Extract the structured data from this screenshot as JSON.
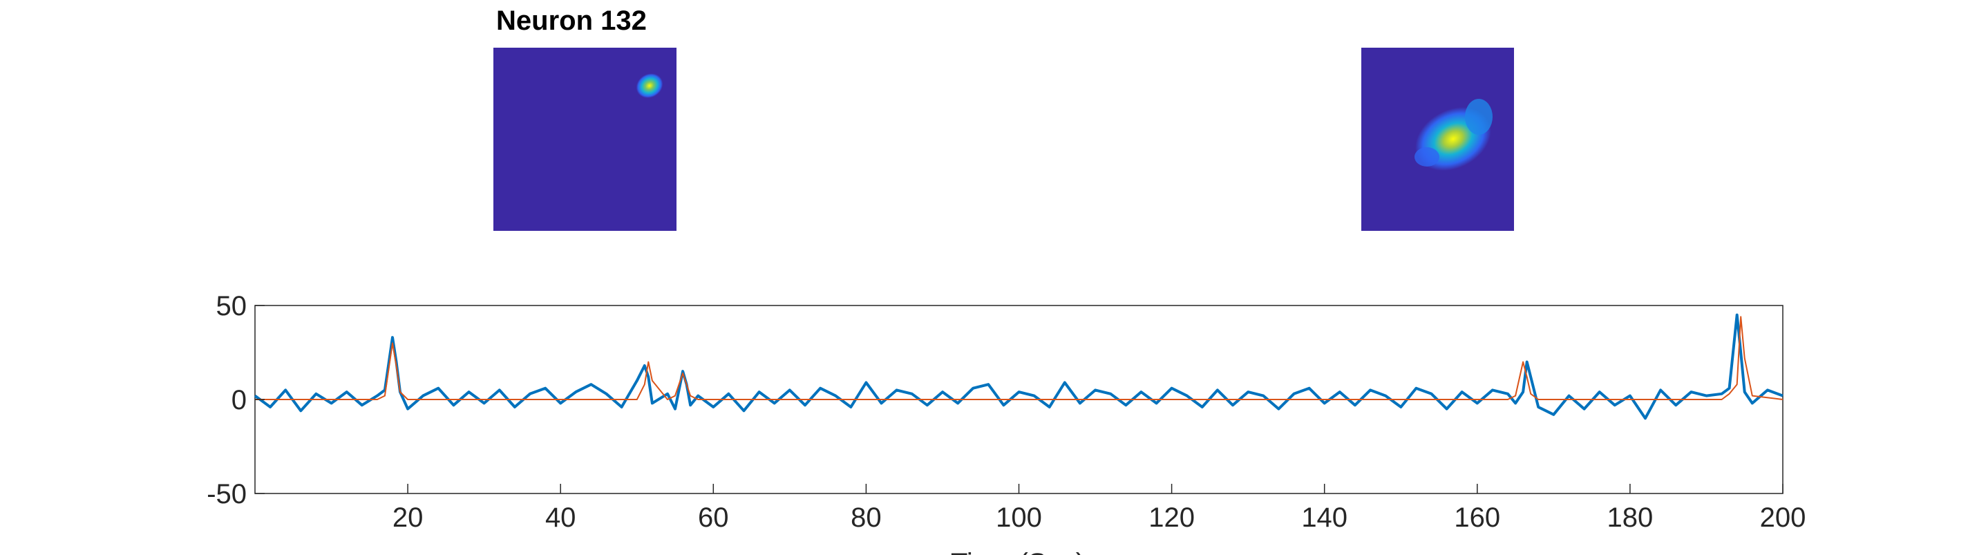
{
  "figure": {
    "left_panel_title": "Neuron 132",
    "right_panel_title": "",
    "colormap": [
      "#3e26a8",
      "#2f65f2",
      "#16b1d6",
      "#7cc75f",
      "#f9fb0e"
    ],
    "background_color": "#3c29a3"
  },
  "chart_data": {
    "type": "line",
    "title": "",
    "xlabel": "Time (Sec)",
    "ylabel": "",
    "xlim": [
      0,
      200
    ],
    "ylim": [
      -50,
      50
    ],
    "xticks": [
      20,
      40,
      60,
      80,
      100,
      120,
      140,
      160,
      180,
      200
    ],
    "yticks": [
      -50,
      0,
      50
    ],
    "grid": false,
    "legend": "none",
    "series": [
      {
        "color": "#0072bd",
        "x": [
          0,
          2,
          4,
          6,
          8,
          10,
          12,
          14,
          16,
          17,
          18,
          18.5,
          19,
          20,
          22,
          24,
          26,
          28,
          30,
          32,
          34,
          36,
          38,
          40,
          42,
          44,
          46,
          48,
          50,
          51,
          51.5,
          52,
          54,
          55,
          56,
          56.5,
          57,
          58,
          60,
          62,
          64,
          66,
          68,
          70,
          72,
          74,
          76,
          78,
          80,
          82,
          84,
          86,
          88,
          90,
          92,
          94,
          96,
          98,
          100,
          102,
          104,
          106,
          108,
          110,
          112,
          114,
          116,
          118,
          120,
          122,
          124,
          126,
          128,
          130,
          132,
          134,
          136,
          138,
          140,
          142,
          144,
          146,
          148,
          150,
          152,
          154,
          156,
          158,
          160,
          162,
          164,
          165,
          166,
          166.5,
          167,
          168,
          170,
          172,
          174,
          176,
          178,
          180,
          182,
          184,
          186,
          188,
          190,
          192,
          193,
          194,
          194.5,
          195,
          196,
          198,
          200
        ],
        "y": [
          2,
          -4,
          5,
          -6,
          3,
          -2,
          4,
          -3,
          2,
          5,
          33,
          20,
          4,
          -5,
          2,
          6,
          -3,
          4,
          -2,
          5,
          -4,
          3,
          6,
          -2,
          4,
          8,
          3,
          -4,
          10,
          18,
          12,
          -2,
          3,
          -5,
          15,
          8,
          -3,
          2,
          -4,
          3,
          -6,
          4,
          -2,
          5,
          -3,
          6,
          2,
          -4,
          9,
          -2,
          5,
          3,
          -3,
          4,
          -2,
          6,
          8,
          -3,
          4,
          2,
          -4,
          9,
          -2,
          5,
          3,
          -3,
          4,
          -2,
          6,
          2,
          -4,
          5,
          -3,
          4,
          2,
          -5,
          3,
          6,
          -2,
          4,
          -3,
          5,
          2,
          -4,
          6,
          3,
          -5,
          4,
          -2,
          5,
          3,
          -2,
          4,
          20,
          12,
          -4,
          -8,
          2,
          -5,
          4,
          -3,
          2,
          -10,
          5,
          -3,
          4,
          2,
          3,
          6,
          45,
          25,
          4,
          -2,
          5,
          2
        ]
      },
      {
        "color": "#d95319",
        "x": [
          0,
          16,
          17,
          18,
          18.5,
          19,
          20,
          50,
          51,
          51.5,
          52,
          54,
          55,
          56,
          56.5,
          57,
          58,
          164,
          165,
          166,
          166.5,
          167,
          168,
          192,
          193,
          194,
          194.5,
          195,
          196,
          200
        ],
        "y": [
          0,
          0,
          2,
          30,
          18,
          4,
          0,
          0,
          8,
          20,
          10,
          0,
          2,
          14,
          8,
          2,
          0,
          0,
          2,
          20,
          12,
          3,
          0,
          0,
          3,
          8,
          44,
          22,
          2,
          0
        ]
      }
    ]
  }
}
